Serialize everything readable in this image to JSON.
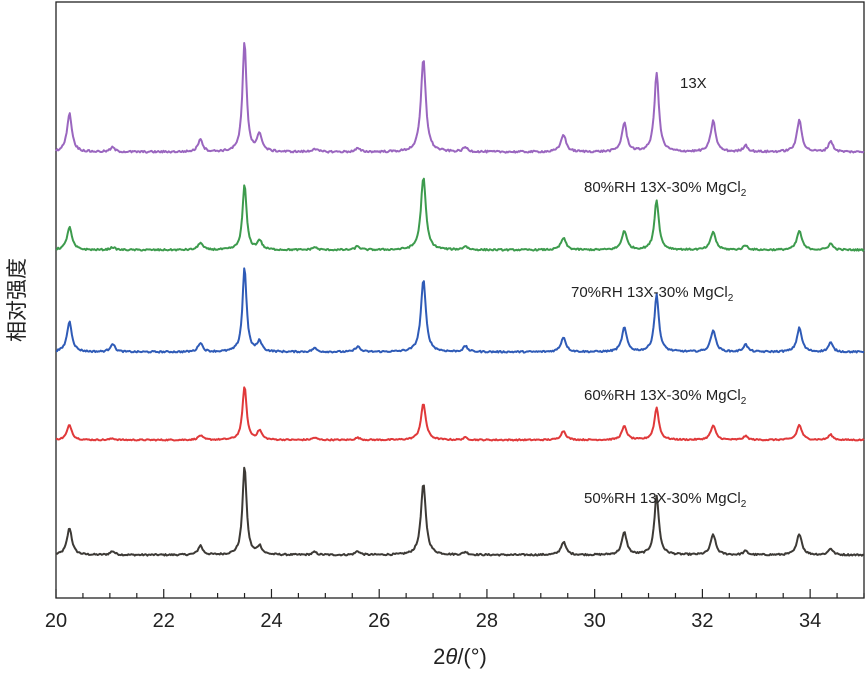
{
  "chart_data": {
    "type": "line",
    "xlabel_prefix": "2",
    "xlabel_var": "θ",
    "xlabel_suffix": "/(°)",
    "ylabel": "相对强度",
    "xlim": [
      20,
      35
    ],
    "xticks": [
      "20",
      "22",
      "24",
      "26",
      "28",
      "30",
      "32",
      "34"
    ],
    "peaks": [
      {
        "x": 20.25,
        "w": 0.055
      },
      {
        "x": 21.05,
        "w": 0.05
      },
      {
        "x": 22.68,
        "w": 0.05
      },
      {
        "x": 23.5,
        "w": 0.045
      },
      {
        "x": 23.78,
        "w": 0.05
      },
      {
        "x": 24.8,
        "w": 0.05
      },
      {
        "x": 25.6,
        "w": 0.05
      },
      {
        "x": 26.82,
        "w": 0.055
      },
      {
        "x": 27.6,
        "w": 0.05
      },
      {
        "x": 29.42,
        "w": 0.055
      },
      {
        "x": 30.55,
        "w": 0.055
      },
      {
        "x": 31.15,
        "w": 0.05
      },
      {
        "x": 32.2,
        "w": 0.055
      },
      {
        "x": 32.8,
        "w": 0.05
      },
      {
        "x": 33.8,
        "w": 0.055
      },
      {
        "x": 34.38,
        "w": 0.05
      }
    ],
    "series": [
      {
        "label_main": "50%RH 13X-30% MgCl",
        "label_sub": "2",
        "color": "#3d3a36",
        "heights": [
          0.29,
          0.04,
          0.1,
          0.96,
          0.09,
          0.03,
          0.04,
          0.76,
          0.03,
          0.14,
          0.24,
          0.64,
          0.22,
          0.04,
          0.23,
          0.07
        ]
      },
      {
        "label_main": "60%RH 13X-30% MgCl",
        "label_sub": "2",
        "color": "#e0393a",
        "heights": [
          0.2,
          0.02,
          0.06,
          0.72,
          0.12,
          0.03,
          0.03,
          0.48,
          0.03,
          0.12,
          0.18,
          0.43,
          0.19,
          0.05,
          0.2,
          0.07
        ]
      },
      {
        "label_main": "70%RH 13X-30% MgCl",
        "label_sub": "2",
        "color": "#2f5bb7",
        "heights": [
          0.33,
          0.09,
          0.1,
          0.92,
          0.11,
          0.04,
          0.06,
          0.78,
          0.06,
          0.16,
          0.26,
          0.62,
          0.24,
          0.08,
          0.26,
          0.1
        ]
      },
      {
        "label_main": "80%RH 13X-30% MgCl",
        "label_sub": "2",
        "color": "#3d9b4d",
        "heights": [
          0.25,
          0.03,
          0.08,
          0.72,
          0.1,
          0.03,
          0.04,
          0.8,
          0.04,
          0.13,
          0.21,
          0.55,
          0.2,
          0.05,
          0.21,
          0.07
        ]
      },
      {
        "label_main": "13X",
        "label_sub": "",
        "color": "#9a66bf",
        "heights": [
          0.35,
          0.04,
          0.12,
          1.0,
          0.16,
          0.03,
          0.03,
          0.84,
          0.04,
          0.16,
          0.26,
          0.72,
          0.28,
          0.06,
          0.29,
          0.1
        ]
      }
    ]
  }
}
